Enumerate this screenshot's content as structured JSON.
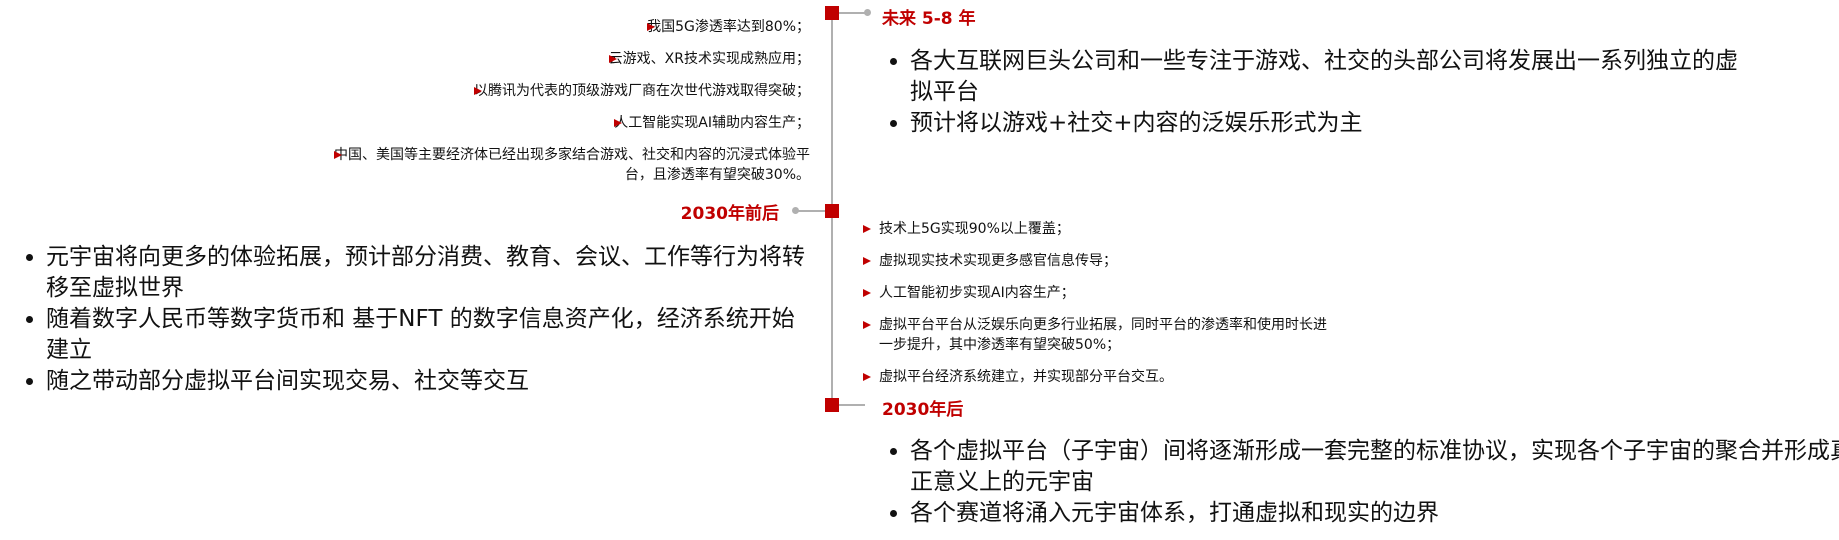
{
  "stages": [
    {
      "label": "未来 5-8 年",
      "points": [
        "我国5G渗透率达到80%；",
        "云游戏、XR技术实现成熟应用；",
        "以腾讯为代表的顶级游戏厂商在次世代游戏取得突破；",
        "人工智能实现AI辅助内容生产；",
        "中国、美国等主要经济体已经出现多家结合游戏、社交和内容的沉浸式体验平台，且渗透率有望突破30%。"
      ],
      "summary": [
        "各大互联网巨头公司和一些专注于游戏、社交的头部公司将发展出一系列独立的虚拟平台",
        "预计将以游戏+社交+内容的泛娱乐形式为主"
      ]
    },
    {
      "label": "2030年前后",
      "points": [
        "技术上5G实现90%以上覆盖；",
        "虚拟现实技术实现更多感官信息传导；",
        "人工智能初步实现AI内容生产；",
        "虚拟平台平台从泛娱乐向更多行业拓展，同时平台的渗透率和使用时长进一步提升，其中渗透率有望突破50%；",
        "虚拟平台经济系统建立，并实现部分平台交互。"
      ],
      "summary": [
        "元宇宙将向更多的体验拓展，预计部分消费、教育、会议、工作等行为将转移至虚拟世界",
        "随着数字人民币等数字货币和 基于NFT 的数字信息资产化，经济系统开始建立",
        "随之带动部分虚拟平台间实现交易、社交等交互"
      ]
    },
    {
      "label": "2030年后",
      "summary": [
        "各个虚拟平台（子宇宙）间将逐渐形成一套完整的标准协议，实现各个子宇宙的聚合并形成真正意义上的元宇宙",
        "各个赛道将涌入元宇宙体系，打通虚拟和现实的边界"
      ]
    }
  ]
}
